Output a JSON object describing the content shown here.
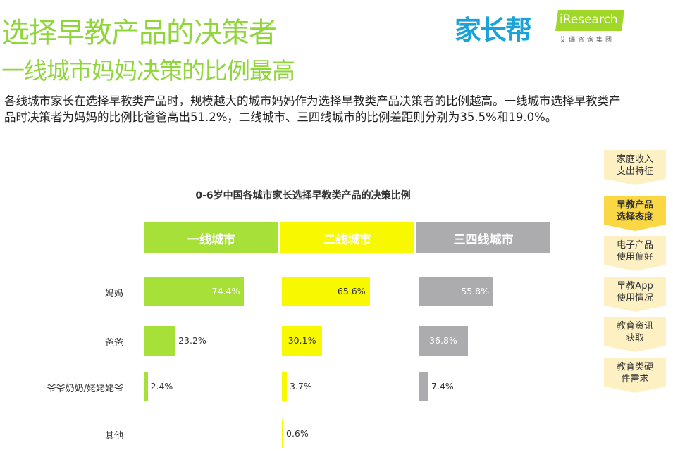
{
  "header": {
    "title": "选择早教产品的决策者",
    "subtitle": "一线城市妈妈决策的比例最高"
  },
  "logos": {
    "jiazhangbang": "家长帮",
    "iresearch": "iResearch",
    "iresearch_cn": "艾瑞咨询集团"
  },
  "description": "各线城市家长在选择早教类产品时，规模越大的城市妈妈作为选择早教类产品决策者的比例越高。一线城市选择早教类产品时决策者为妈妈的比例比爸爸高出51.2%，二线城市、三四线城市的比例差距则分别为35.5%和19.0%。",
  "side_nav": [
    {
      "label": "家庭收入支出特征",
      "active": false
    },
    {
      "label": "早教产品选择态度",
      "active": true
    },
    {
      "label": "电子产品使用偏好",
      "active": false
    },
    {
      "label": "早教App使用情况",
      "active": false
    },
    {
      "label": "教育资讯获取",
      "active": false
    },
    {
      "label": "教育类硬件需求",
      "active": false
    }
  ],
  "chart_data": {
    "type": "bar",
    "title": "0-6岁中国各城市家长选择早教类产品的决策比例",
    "categories": [
      "妈妈",
      "爸爸",
      "爷爷奶奶/姥姥姥爷",
      "其他"
    ],
    "unit": "%",
    "series": [
      {
        "name": "一线城市",
        "color": "#a8e03a",
        "values": [
          74.4,
          23.2,
          2.4,
          null
        ],
        "labels": [
          "74.4%",
          "23.2%",
          "2.4%",
          ""
        ]
      },
      {
        "name": "二线城市",
        "color": "#f8f800",
        "values": [
          65.6,
          30.1,
          3.7,
          0.6
        ],
        "labels": [
          "65.6%",
          "30.1%",
          "3.7%",
          "0.6%"
        ]
      },
      {
        "name": "三四线城市",
        "color": "#acabae",
        "values": [
          55.8,
          36.8,
          7.4,
          null
        ],
        "labels": [
          "55.8%",
          "36.8%",
          "7.4%",
          ""
        ]
      }
    ]
  }
}
